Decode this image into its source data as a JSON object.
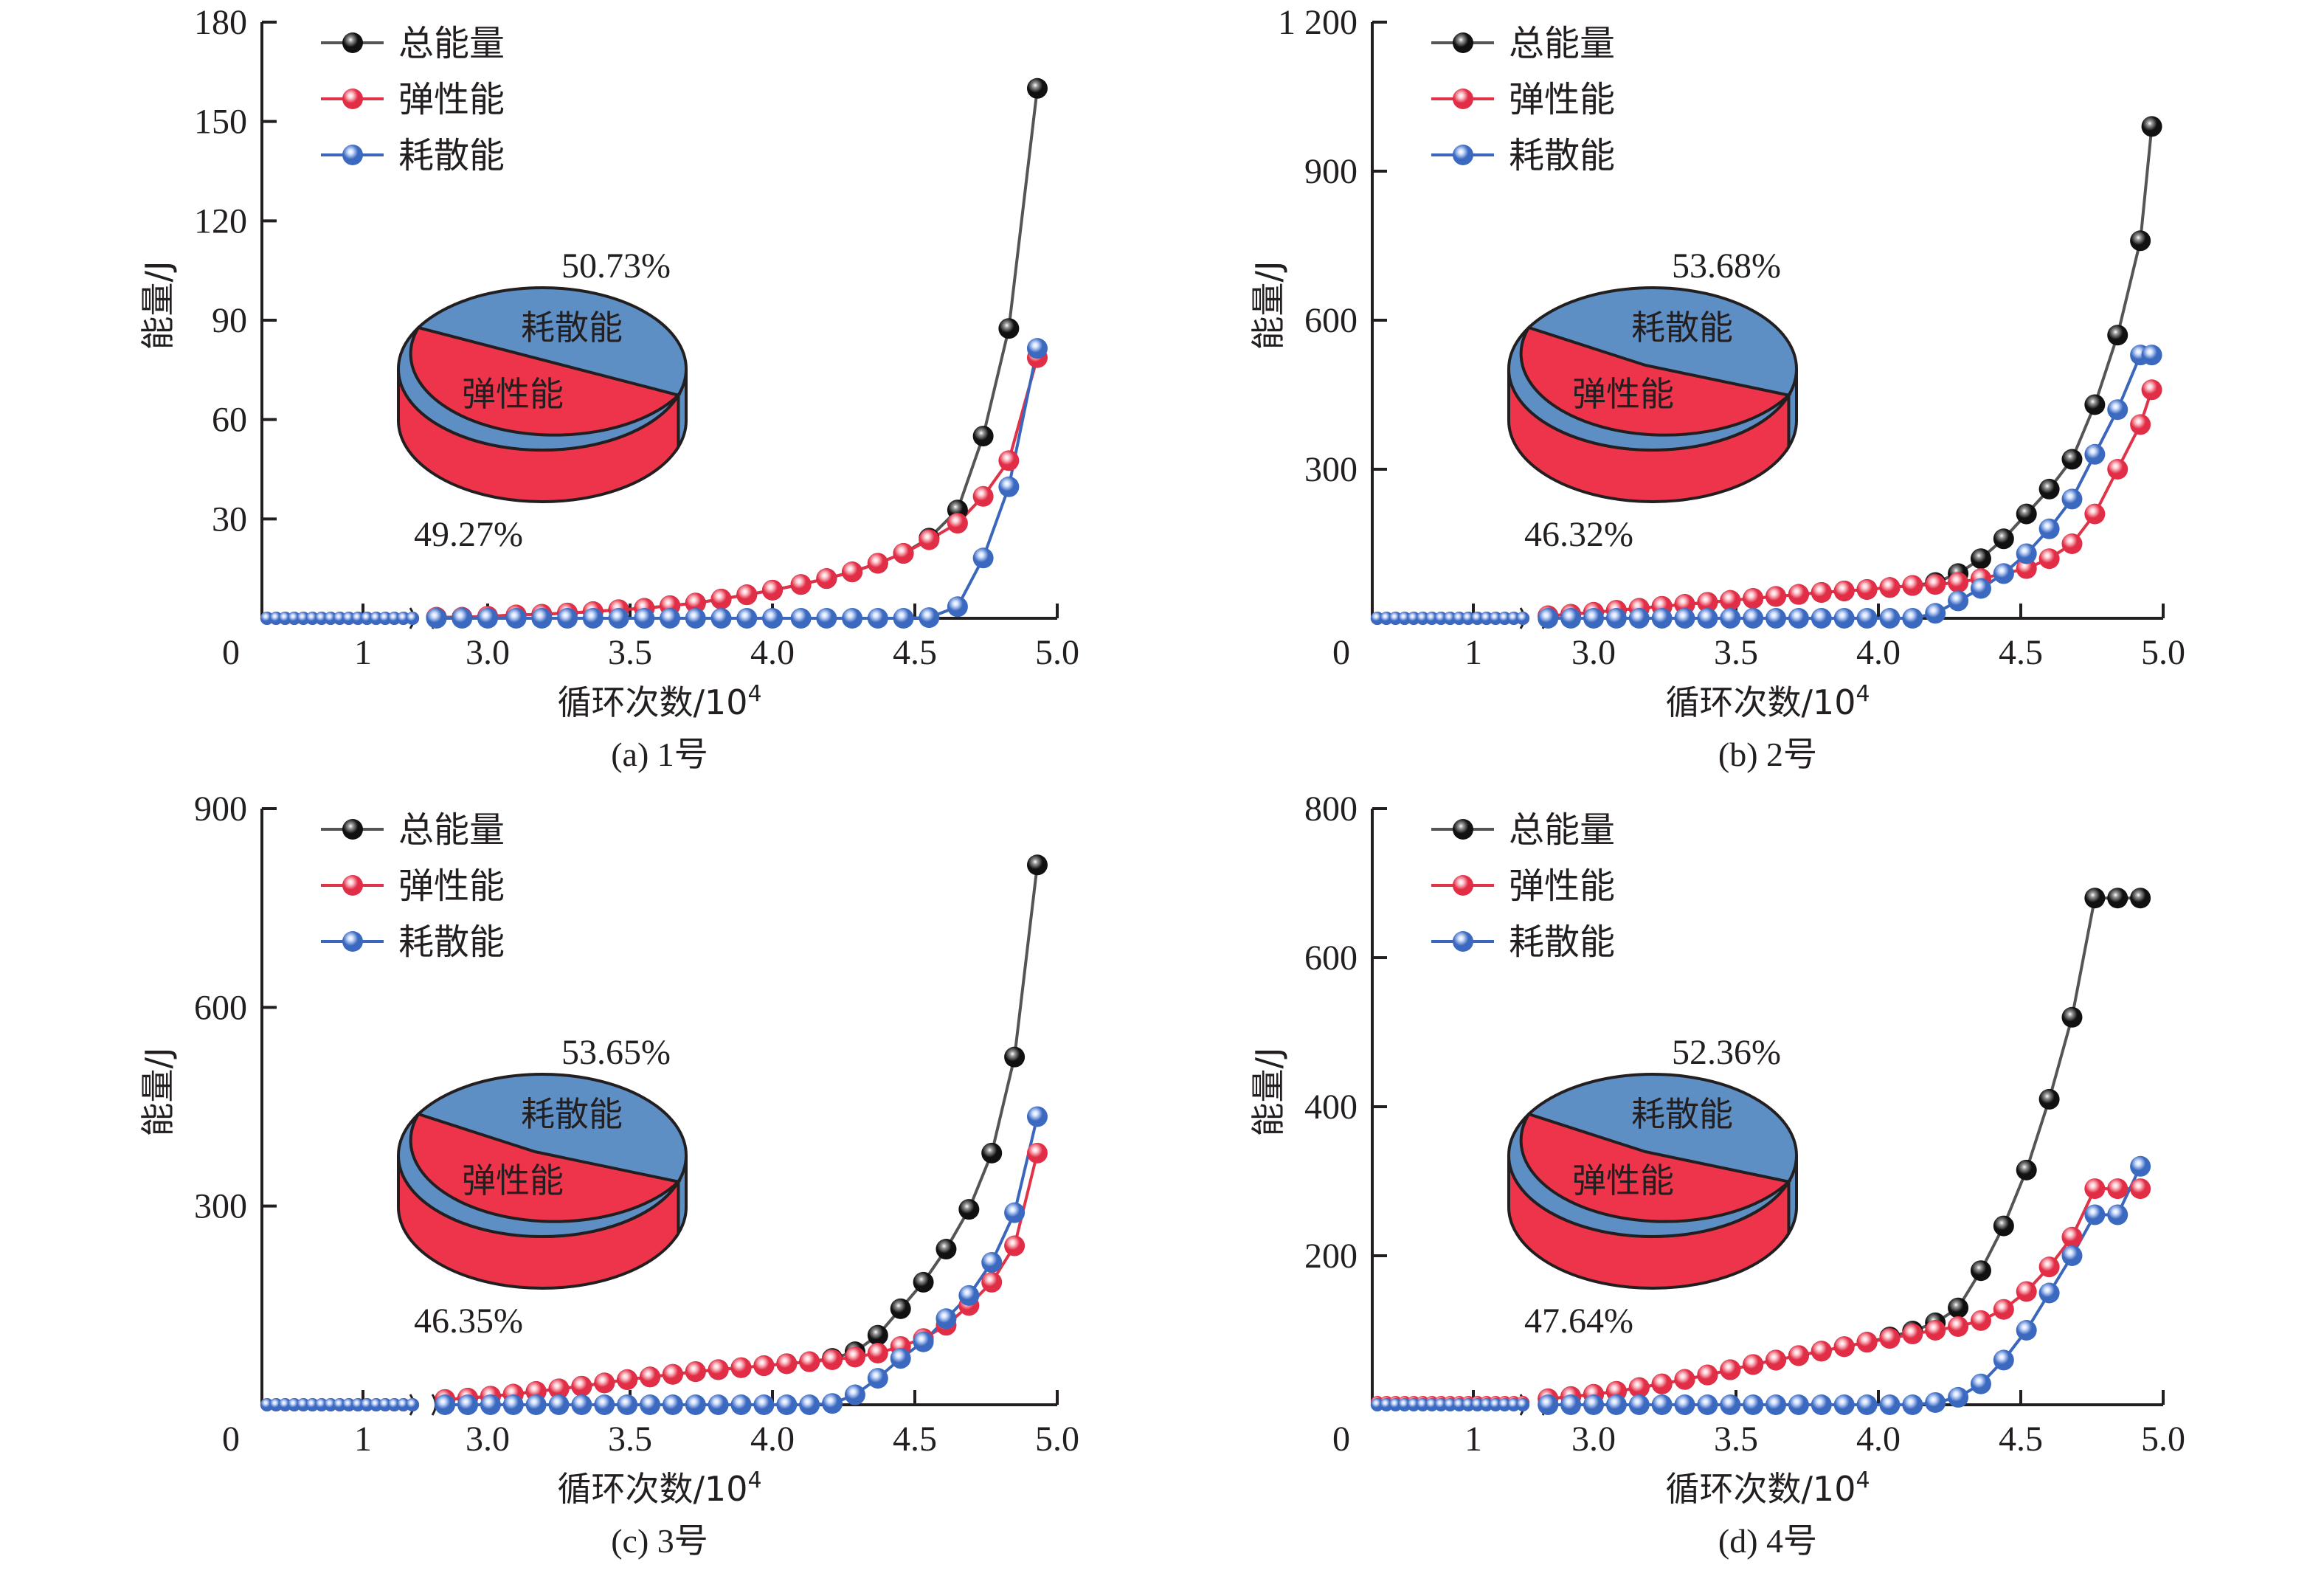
{
  "chart_data": [
    {
      "type": "line",
      "panel": "a",
      "caption": "(a) 1号",
      "xlabel": "循环次数/10",
      "xlabel_sup": "4",
      "ylabel": "能量/J",
      "ylim": [
        0,
        180
      ],
      "yticks": [
        0,
        30,
        60,
        90,
        120,
        150,
        180
      ],
      "ytick_labels": [
        "0",
        "30",
        "60",
        "90",
        "120",
        "150",
        "180"
      ],
      "xtick_labels_left": [
        "0",
        "1"
      ],
      "xtick_labels_right": [
        "3.0",
        "3.5",
        "4.0",
        "4.5",
        "5.0"
      ],
      "legend": [
        "总能量",
        "弹性能",
        "耗散能"
      ],
      "pie": {
        "dissipated_label": "耗散能",
        "elastic_label": "弹性能",
        "dissipated_pct": "50.73%",
        "elastic_pct": "49.27%",
        "dissipated": 50.73,
        "elastic": 49.27
      },
      "left_segment": {
        "x": [
          0.05,
          0.14,
          0.23,
          0.32,
          0.41,
          0.5,
          0.59,
          0.68,
          0.77,
          0.86,
          0.95,
          1.04,
          1.13,
          1.22,
          1.31,
          1.4,
          1.49
        ],
        "value": 0
      },
      "x": [
        2.82,
        2.91,
        3.0,
        3.1,
        3.19,
        3.28,
        3.37,
        3.46,
        3.55,
        3.64,
        3.73,
        3.82,
        3.91,
        4.0,
        4.1,
        4.19,
        4.28,
        4.37,
        4.46,
        4.55,
        4.65,
        4.74,
        4.83,
        4.93
      ],
      "series": [
        {
          "name": "总能量",
          "values": [
            0.3,
            0.3,
            0.6,
            1.0,
            1.2,
            1.6,
            2.0,
            2.6,
            3.0,
            3.8,
            4.6,
            5.8,
            7.1,
            8.5,
            10.2,
            12.0,
            14.0,
            16.6,
            19.6,
            24.2,
            32.7,
            55.0,
            87.5,
            160.0
          ]
        },
        {
          "name": "弹性能",
          "values": [
            0.3,
            0.3,
            0.6,
            1.0,
            1.2,
            1.6,
            2.0,
            2.6,
            3.0,
            3.8,
            4.6,
            5.8,
            7.1,
            8.5,
            10.2,
            12.0,
            14.0,
            16.6,
            19.6,
            23.7,
            28.7,
            36.8,
            47.6,
            78.7
          ]
        },
        {
          "name": "耗散能",
          "values": [
            0,
            0,
            0,
            0,
            0,
            0,
            0,
            0,
            0,
            0,
            0,
            0,
            0,
            0,
            0,
            0,
            0,
            0,
            0,
            0.2,
            3.5,
            18.2,
            39.7,
            81.5
          ]
        }
      ]
    },
    {
      "type": "line",
      "panel": "b",
      "caption": "(b) 2号",
      "xlabel": "循环次数/10",
      "xlabel_sup": "4",
      "ylabel": "能量/J",
      "ylim": [
        0,
        1200
      ],
      "yticks": [
        0,
        300,
        600,
        900,
        1200
      ],
      "ytick_labels": [
        "0",
        "300",
        "600",
        "900",
        "1 200"
      ],
      "xtick_labels_left": [
        "0",
        "1"
      ],
      "xtick_labels_right": [
        "3.0",
        "3.5",
        "4.0",
        "4.5",
        "5.0"
      ],
      "legend": [
        "总能量",
        "弹性能",
        "耗散能"
      ],
      "pie": {
        "dissipated_label": "耗散能",
        "elastic_label": "弹性能",
        "dissipated_pct": "53.68%",
        "elastic_pct": "46.32%",
        "dissipated": 53.68,
        "elastic": 46.32
      },
      "left_segment": {
        "x": [
          0.05,
          0.14,
          0.23,
          0.32,
          0.41,
          0.5,
          0.59,
          0.68,
          0.77,
          0.86,
          0.95,
          1.04,
          1.13,
          1.22,
          1.31,
          1.4,
          1.49
        ],
        "value": 0
      },
      "x": [
        2.84,
        2.92,
        3.0,
        3.08,
        3.16,
        3.24,
        3.32,
        3.4,
        3.48,
        3.56,
        3.64,
        3.72,
        3.8,
        3.88,
        3.96,
        4.04,
        4.12,
        4.2,
        4.28,
        4.36,
        4.44,
        4.52,
        4.6,
        4.68,
        4.76,
        4.84,
        4.92,
        4.96
      ],
      "series": [
        {
          "name": "总能量",
          "values": [
            5,
            8,
            12,
            16,
            20,
            24,
            28,
            32,
            36,
            40,
            44,
            48,
            52,
            55,
            58,
            62,
            66,
            72,
            90,
            120,
            160,
            210,
            260,
            320,
            430,
            570,
            760,
            990
          ]
        },
        {
          "name": "弹性能",
          "values": [
            5,
            8,
            12,
            16,
            20,
            24,
            28,
            32,
            36,
            40,
            44,
            48,
            52,
            55,
            58,
            62,
            66,
            68,
            72,
            80,
            90,
            100,
            120,
            150,
            210,
            300,
            390,
            460
          ]
        },
        {
          "name": "耗散能",
          "values": [
            0,
            0,
            0,
            0,
            0,
            0,
            0,
            0,
            0,
            0,
            0,
            0,
            0,
            0,
            0,
            0,
            0,
            10,
            35,
            60,
            90,
            130,
            180,
            240,
            330,
            420,
            530,
            530
          ]
        }
      ]
    },
    {
      "type": "line",
      "panel": "c",
      "caption": "(c) 3号",
      "xlabel": "循环次数/10",
      "xlabel_sup": "4",
      "ylabel": "能量/J",
      "ylim": [
        0,
        900
      ],
      "yticks": [
        0,
        300,
        600,
        900
      ],
      "ytick_labels": [
        "0",
        "300",
        "600",
        "900"
      ],
      "xtick_labels_left": [
        "0",
        "1"
      ],
      "xtick_labels_right": [
        "3.0",
        "3.5",
        "4.0",
        "4.5",
        "5.0"
      ],
      "legend": [
        "总能量",
        "弹性能",
        "耗散能"
      ],
      "pie": {
        "dissipated_label": "耗散能",
        "elastic_label": "弹性能",
        "dissipated_pct": "53.65%",
        "elastic_pct": "46.35%",
        "dissipated": 53.65,
        "elastic": 46.35
      },
      "left_segment": {
        "x": [
          0.05,
          0.14,
          0.23,
          0.32,
          0.41,
          0.5,
          0.59,
          0.68,
          0.77,
          0.86,
          0.95,
          1.04,
          1.13,
          1.22,
          1.31,
          1.4,
          1.49
        ],
        "value": 0
      },
      "x": [
        2.85,
        2.93,
        3.01,
        3.09,
        3.17,
        3.25,
        3.33,
        3.41,
        3.49,
        3.57,
        3.65,
        3.73,
        3.81,
        3.89,
        3.97,
        4.05,
        4.13,
        4.21,
        4.29,
        4.37,
        4.45,
        4.53,
        4.61,
        4.69,
        4.77,
        4.85,
        4.93
      ],
      "series": [
        {
          "name": "总能量",
          "values": [
            8,
            10,
            13,
            16,
            20,
            24,
            28,
            33,
            38,
            42,
            46,
            50,
            53,
            56,
            59,
            62,
            65,
            70,
            80,
            105,
            145,
            185,
            235,
            295,
            380,
            525,
            815
          ]
        },
        {
          "name": "弹性能",
          "values": [
            8,
            10,
            13,
            16,
            20,
            24,
            28,
            33,
            38,
            42,
            46,
            50,
            53,
            56,
            59,
            62,
            65,
            68,
            72,
            78,
            88,
            100,
            120,
            150,
            185,
            240,
            380
          ]
        },
        {
          "name": "耗散能",
          "values": [
            0,
            0,
            0,
            0,
            0,
            0,
            0,
            0,
            0,
            0,
            0,
            0,
            0,
            0,
            0,
            0,
            0,
            2,
            15,
            40,
            70,
            95,
            130,
            165,
            215,
            290,
            435
          ]
        }
      ]
    },
    {
      "type": "line",
      "panel": "d",
      "caption": "(d) 4号",
      "xlabel": "循环次数/10",
      "xlabel_sup": "4",
      "ylabel": "能量/J",
      "ylim": [
        0,
        800
      ],
      "yticks": [
        0,
        200,
        400,
        600,
        800
      ],
      "ytick_labels": [
        "0",
        "200",
        "400",
        "600",
        "800"
      ],
      "xtick_labels_left": [
        "0",
        "1"
      ],
      "xtick_labels_right": [
        "3.0",
        "3.5",
        "4.0",
        "4.5",
        "5.0"
      ],
      "legend": [
        "总能量",
        "弹性能",
        "耗散能"
      ],
      "pie": {
        "dissipated_label": "耗散能",
        "elastic_label": "弹性能",
        "dissipated_pct": "52.36%",
        "elastic_pct": "47.64%",
        "dissipated": 52.36,
        "elastic": 47.64
      },
      "left_segment": {
        "x": [
          0.05,
          0.14,
          0.23,
          0.32,
          0.41,
          0.5,
          0.59,
          0.68,
          0.77,
          0.86,
          0.95,
          1.04,
          1.13,
          1.22,
          1.31,
          1.4,
          1.49
        ],
        "value": 3
      },
      "x": [
        2.84,
        2.92,
        3.0,
        3.08,
        3.16,
        3.24,
        3.32,
        3.4,
        3.48,
        3.56,
        3.64,
        3.72,
        3.8,
        3.88,
        3.96,
        4.04,
        4.12,
        4.2,
        4.28,
        4.36,
        4.44,
        4.52,
        4.6,
        4.68,
        4.76,
        4.84,
        4.92
      ],
      "series": [
        {
          "name": "总能量",
          "values": [
            8,
            11,
            14,
            18,
            23,
            28,
            34,
            40,
            47,
            54,
            60,
            66,
            72,
            78,
            84,
            91,
            99,
            110,
            130,
            180,
            240,
            315,
            410,
            520,
            680,
            680,
            680
          ]
        },
        {
          "name": "弹性能",
          "values": [
            8,
            11,
            14,
            18,
            23,
            28,
            34,
            40,
            47,
            54,
            60,
            66,
            72,
            78,
            84,
            89,
            95,
            100,
            105,
            113,
            128,
            152,
            185,
            225,
            290,
            290,
            290
          ]
        },
        {
          "name": "耗散能",
          "values": [
            0,
            0,
            0,
            0,
            0,
            0,
            0,
            0,
            0,
            0,
            0,
            0,
            0,
            0,
            0,
            0,
            0,
            3,
            10,
            28,
            60,
            100,
            150,
            200,
            255,
            255,
            320
          ]
        }
      ]
    }
  ]
}
